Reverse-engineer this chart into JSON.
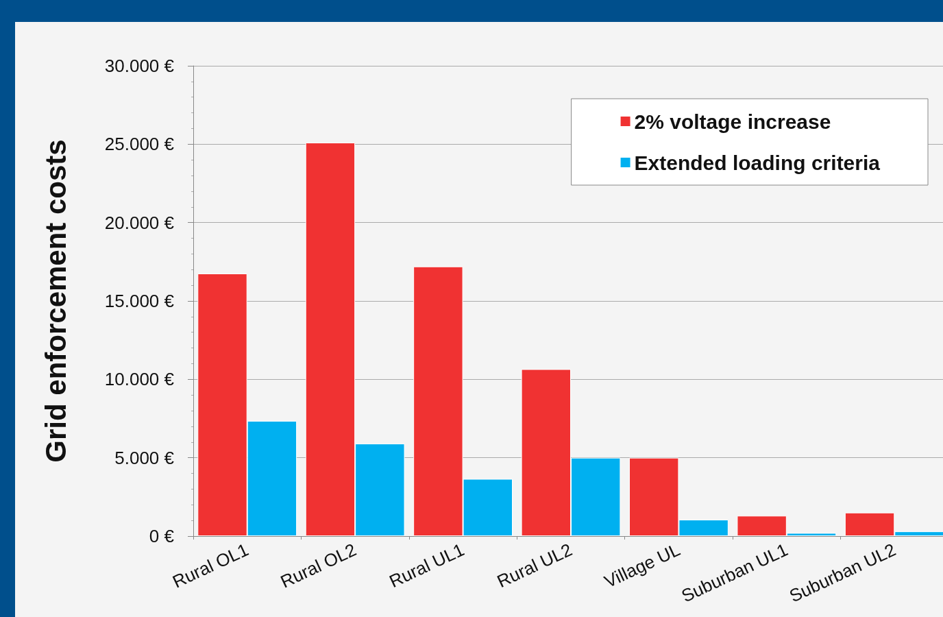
{
  "chart_data": {
    "type": "bar",
    "ylabel": "Grid enforcement costs",
    "categories": [
      "Rural OL1",
      "Rural OL2",
      "Rural UL1",
      "Rural UL2",
      "Village UL",
      "Suburban UL1",
      "Suburban UL2"
    ],
    "series": [
      {
        "name": "2% voltage increase",
        "color": "#f03232",
        "values": [
          16750,
          25100,
          17200,
          10650,
          5000,
          1300,
          1500
        ]
      },
      {
        "name": "Extended loading criteria",
        "color": "#00b0f0",
        "values": [
          7350,
          5900,
          3650,
          5000,
          1050,
          200,
          300
        ]
      }
    ],
    "ylim": [
      0,
      30000
    ],
    "yticks": [
      {
        "value": 0,
        "label": "0 €"
      },
      {
        "value": 5000,
        "label": "5.000 €"
      },
      {
        "value": 10000,
        "label": "10.000 €"
      },
      {
        "value": 15000,
        "label": "15.000 €"
      },
      {
        "value": 20000,
        "label": "20.000 €"
      },
      {
        "value": 25000,
        "label": "25.000 €"
      },
      {
        "value": 30000,
        "label": "30.000 €"
      }
    ],
    "grid": "y",
    "legend": "top right"
  }
}
